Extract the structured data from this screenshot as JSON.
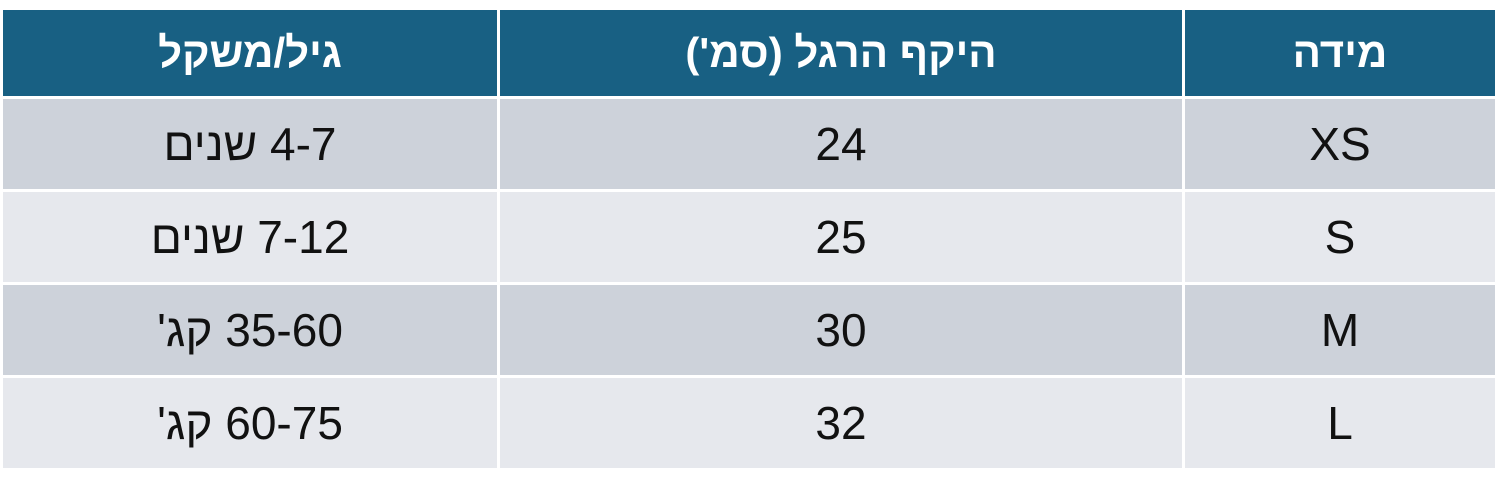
{
  "table": {
    "header": [
      "מידה",
      "היקף הרגל (סמ')",
      "גיל/משקל"
    ],
    "rows": [
      [
        "XS",
        24,
        "4-7 שנים"
      ],
      [
        "S",
        25,
        "7-12 שנים"
      ],
      [
        "M",
        30,
        "35-60 קג'"
      ],
      [
        "L",
        32,
        "60-75 קג'"
      ]
    ]
  }
}
